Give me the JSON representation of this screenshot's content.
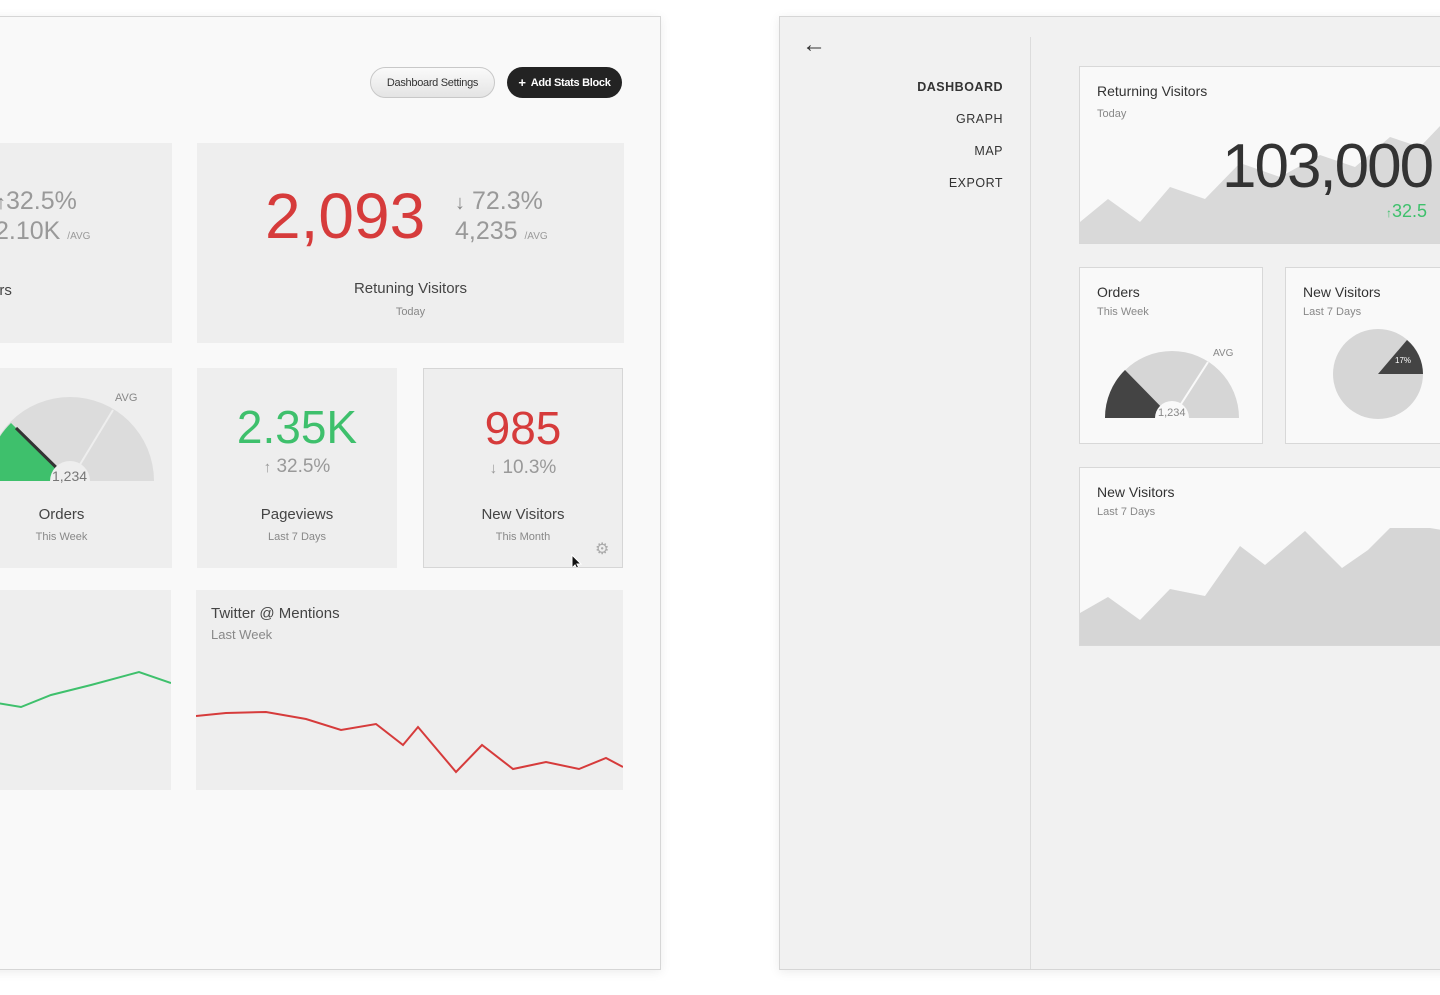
{
  "left": {
    "buttons": {
      "settings": "Dashboard Settings",
      "add": "Add Stats Block",
      "add_icon": "+"
    },
    "card_a": {
      "trend": "32.5%",
      "avg": "2.10K",
      "avg_unit": "/AVG",
      "title": "ors"
    },
    "card_b": {
      "value": "2,093",
      "trend": "72.3%",
      "avg": "4,235",
      "avg_unit": "/AVG",
      "title": "Retuning Visitors",
      "subtitle": "Today"
    },
    "orders": {
      "gauge_label": "AVG",
      "gauge_value": "1,234",
      "title": "Orders",
      "subtitle": "This Week"
    },
    "pageviews": {
      "value": "2.35K",
      "trend": "32.5%",
      "title": "Pageviews",
      "subtitle": "Last 7 Days"
    },
    "new_visitors": {
      "value": "985",
      "trend": "10.3%",
      "title": "New Visitors",
      "subtitle": "This Month"
    },
    "twitter": {
      "title": "Twitter @ Mentions",
      "subtitle": "Last Week"
    }
  },
  "right": {
    "nav": [
      "DASHBOARD",
      "GRAPH",
      "MAP",
      "EXPORT"
    ],
    "returning": {
      "title": "Returning Visitors",
      "subtitle": "Today",
      "value": "103,000",
      "trend": "32.5"
    },
    "orders": {
      "title": "Orders",
      "subtitle": "This Week",
      "gauge_label": "AVG",
      "gauge_value": "1,234"
    },
    "new_visitors_pie": {
      "title": "New Visitors",
      "subtitle": "Last 7 Days",
      "percent": "17%"
    },
    "new_visitors_area": {
      "title": "New Visitors",
      "subtitle": "Last 7 Days"
    }
  },
  "colors": {
    "red": "#d63b3b",
    "green": "#3ec06c",
    "dark": "#232323",
    "gray": "#d6d6d6"
  },
  "icons": {
    "back": "left-arrow-icon",
    "gear": "gear-icon",
    "cursor": "cursor-icon"
  }
}
